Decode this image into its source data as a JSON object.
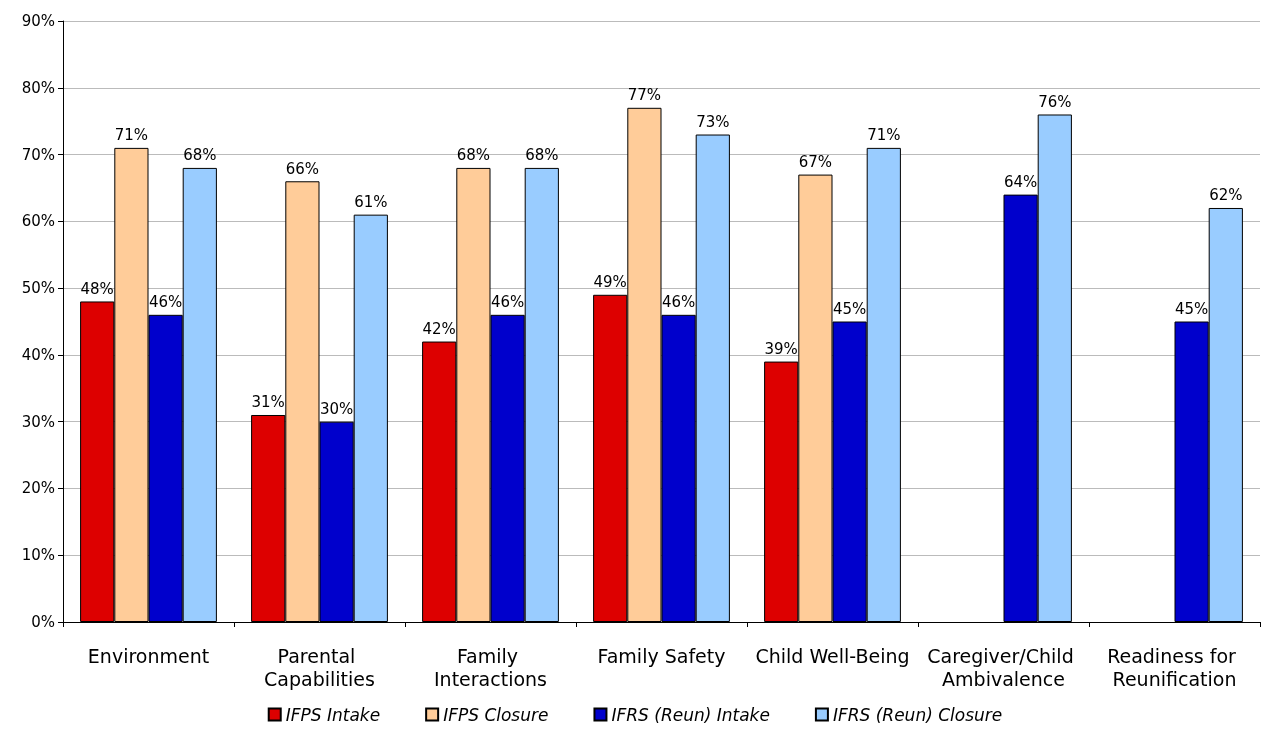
{
  "chart_data": {
    "type": "bar",
    "categories": [
      "Environment",
      "Parental Capabilities",
      "Family Interactions",
      "Family Safety",
      "Child Well-Being",
      "Caregiver/Child Ambivalence",
      "Readiness for Reunification"
    ],
    "series": [
      {
        "name": "IFPS Intake",
        "color": "#dd0000",
        "values": [
          48,
          31,
          42,
          49,
          39,
          null,
          null
        ],
        "value_labels": [
          "48%",
          "31%",
          "42%",
          "49%",
          "39%",
          null,
          null
        ]
      },
      {
        "name": "IFPS Closure",
        "color": "#ffcc99",
        "values": [
          71,
          66,
          68,
          77,
          67,
          null,
          null
        ],
        "value_labels": [
          "71%",
          "66%",
          "68%",
          "77%",
          "67%",
          null,
          null
        ]
      },
      {
        "name": "IFRS (Reun) Intake",
        "color": "#0000cc",
        "values": [
          46,
          30,
          46,
          46,
          45,
          64,
          45
        ],
        "value_labels": [
          "46%",
          "30%",
          "46%",
          "46%",
          "45%",
          "64%",
          "45%"
        ]
      },
      {
        "name": "IFRS (Reun) Closure",
        "color": "#99ccff",
        "values": [
          68,
          61,
          68,
          73,
          71,
          76,
          62
        ],
        "value_labels": [
          "68%",
          "61%",
          "68%",
          "73%",
          "71%",
          "76%",
          "62%"
        ]
      }
    ],
    "ylim": [
      0,
      90
    ],
    "yticks": [
      {
        "value": 0,
        "label": "0%"
      },
      {
        "value": 10,
        "label": "10%"
      },
      {
        "value": 20,
        "label": "20%"
      },
      {
        "value": 30,
        "label": "30%"
      },
      {
        "value": 40,
        "label": "40%"
      },
      {
        "value": 50,
        "label": "50%"
      },
      {
        "value": 60,
        "label": "60%"
      },
      {
        "value": 70,
        "label": "70%"
      },
      {
        "value": 80,
        "label": "80%"
      },
      {
        "value": 90,
        "label": "90%"
      }
    ],
    "grid": "y",
    "legend": "bottom"
  }
}
